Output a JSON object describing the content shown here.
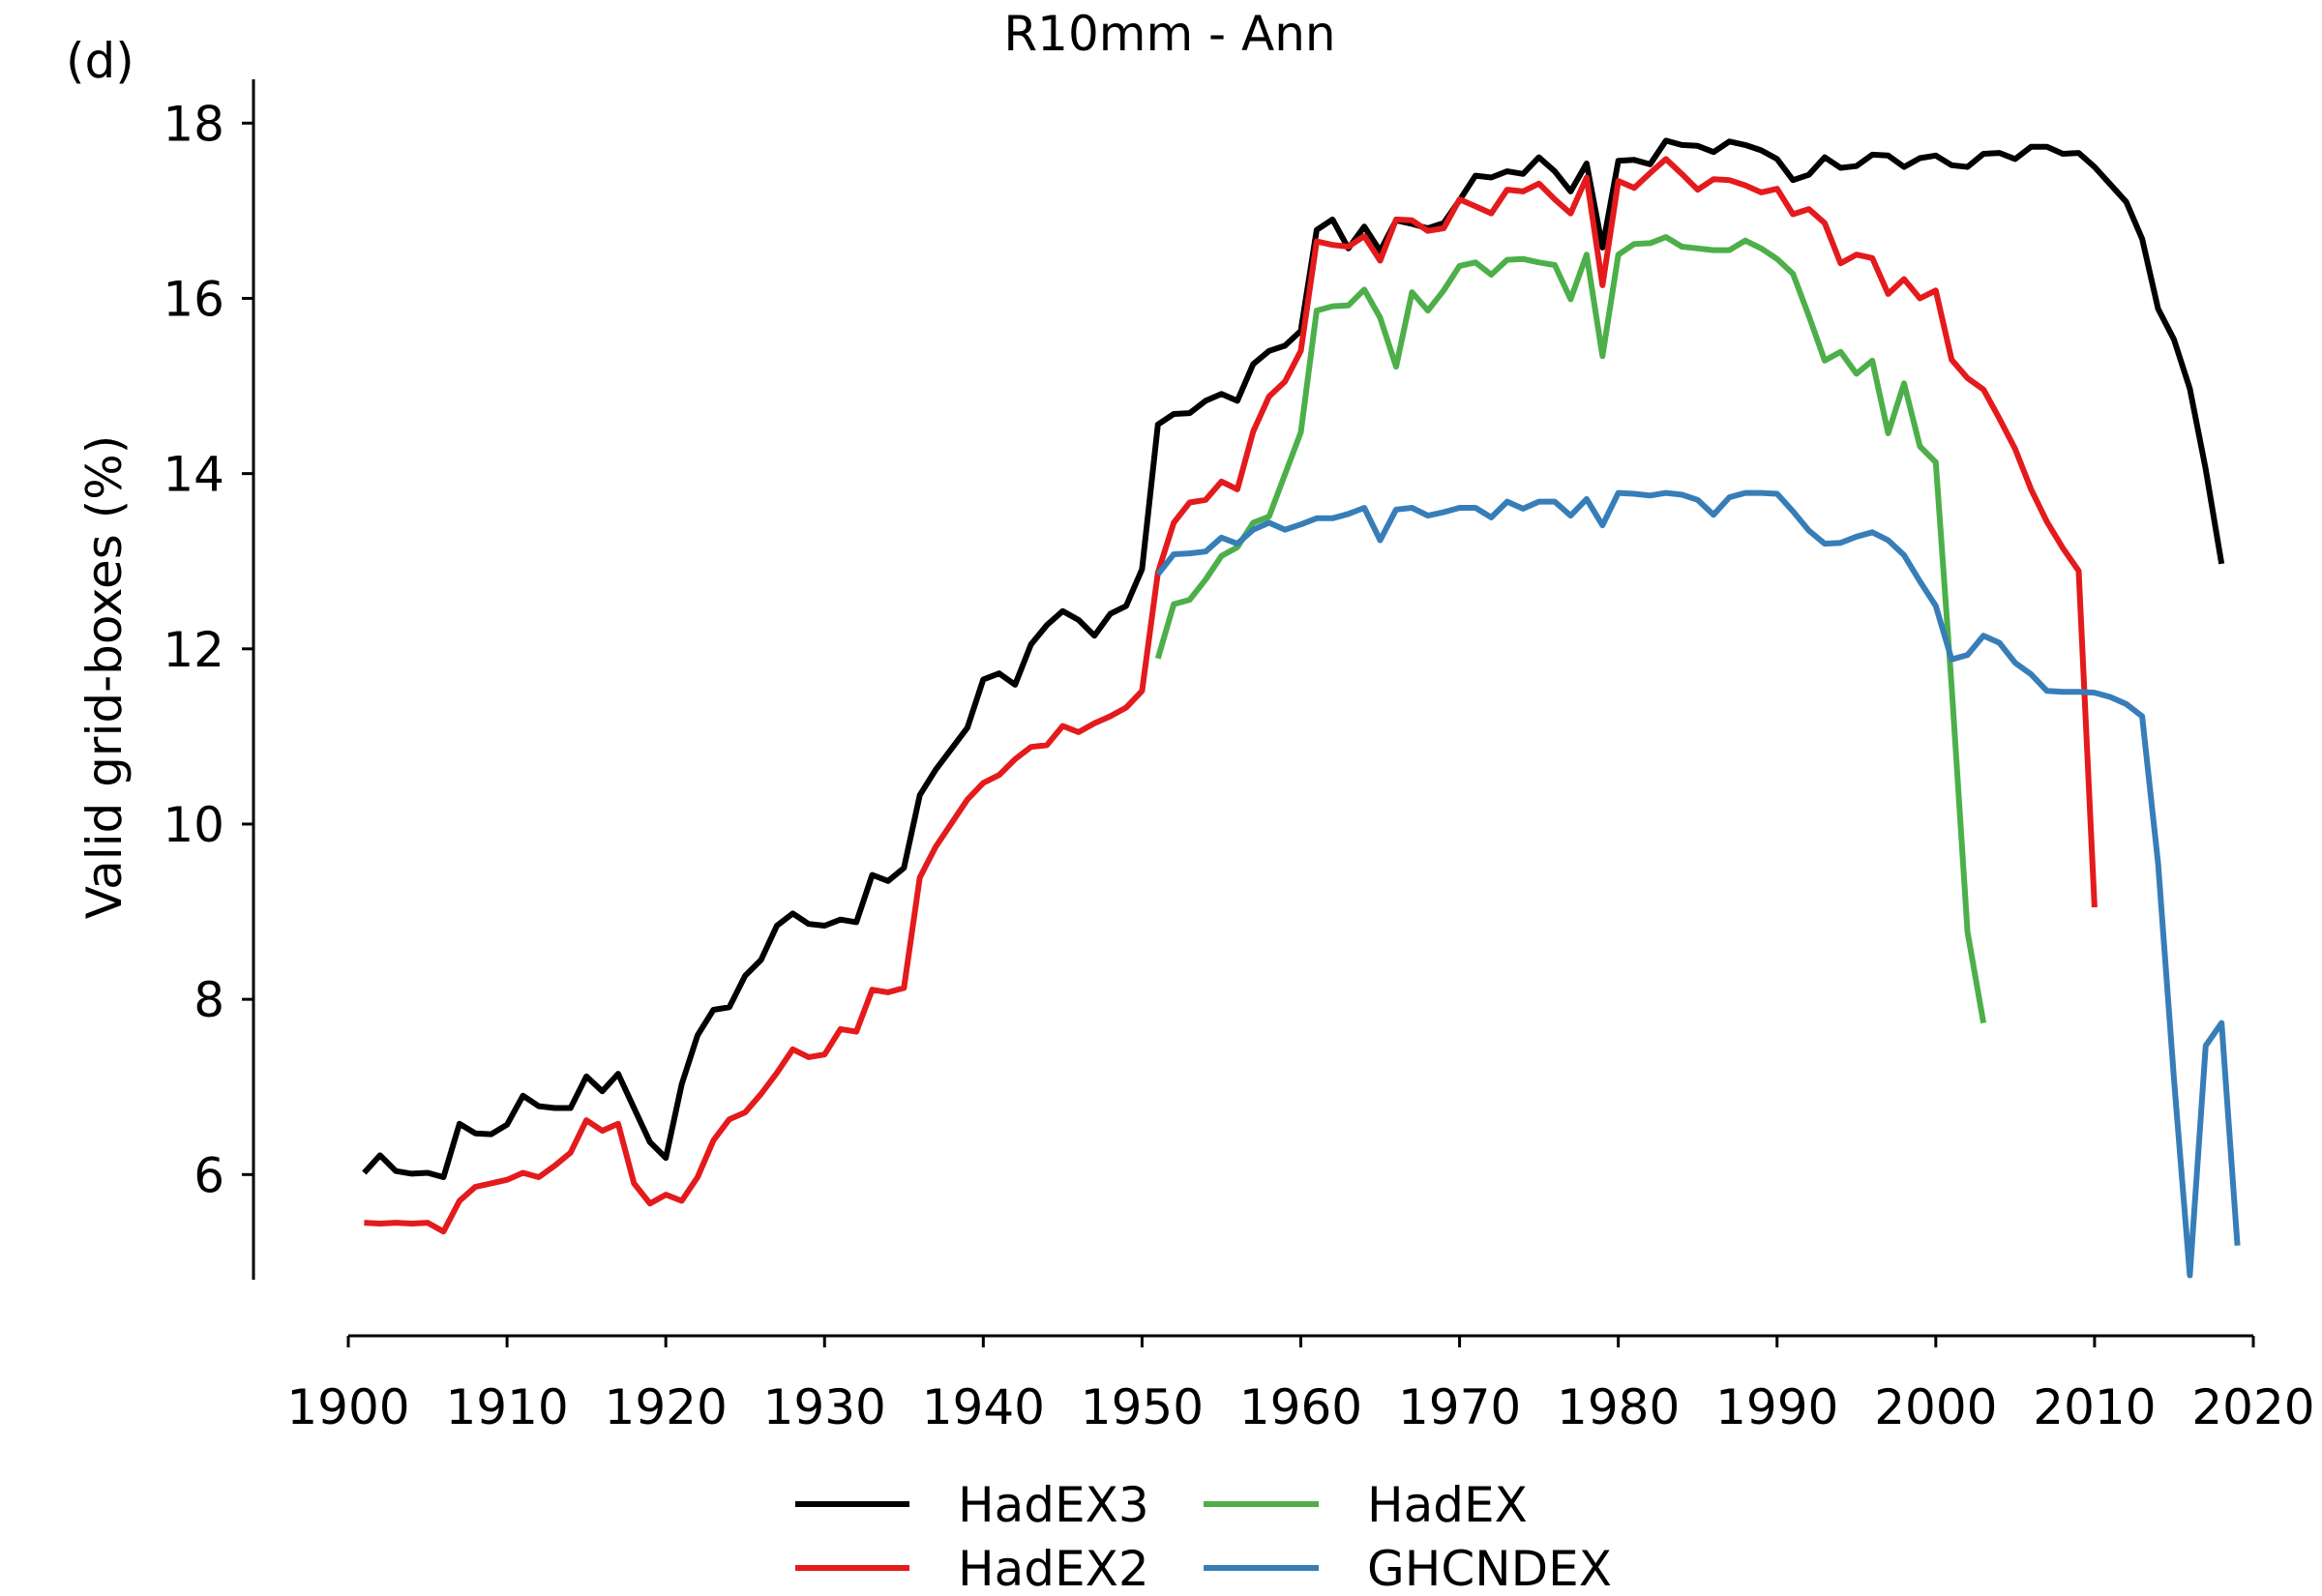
{
  "panel_label": "(d)",
  "chart_data": {
    "type": "line",
    "title": "R10mm - Ann",
    "xlabel": "",
    "ylabel": "Valid grid-boxes (%)",
    "xlim": [
      1900,
      2020
    ],
    "ylim": [
      4.8,
      18.5
    ],
    "x_ticks": [
      1900,
      1910,
      1920,
      1930,
      1940,
      1950,
      1960,
      1970,
      1980,
      1990,
      2000,
      2010,
      2020
    ],
    "y_ticks": [
      6,
      8,
      10,
      12,
      14,
      16,
      18
    ],
    "grid": false,
    "legend_position": "bottom",
    "series": [
      {
        "name": "HadEX3",
        "color": "#000000",
        "x_start": 1901,
        "values": [
          6.02,
          6.22,
          6.04,
          6.01,
          6.02,
          5.97,
          6.58,
          6.47,
          6.46,
          6.57,
          6.9,
          6.78,
          6.76,
          6.76,
          7.12,
          6.95,
          7.15,
          6.76,
          6.37,
          6.19,
          7.03,
          7.59,
          7.88,
          7.91,
          8.27,
          8.45,
          8.84,
          8.98,
          8.86,
          8.84,
          8.91,
          8.88,
          9.42,
          9.35,
          9.5,
          10.33,
          10.62,
          10.86,
          11.1,
          11.65,
          11.72,
          11.59,
          12.05,
          12.27,
          12.43,
          12.33,
          12.15,
          12.4,
          12.49,
          12.91,
          14.56,
          14.68,
          14.69,
          14.83,
          14.91,
          14.83,
          15.25,
          15.4,
          15.46,
          15.63,
          16.78,
          16.9,
          16.57,
          16.82,
          16.54,
          16.89,
          16.85,
          16.8,
          16.86,
          17.12,
          17.4,
          17.38,
          17.45,
          17.42,
          17.61,
          17.45,
          17.22,
          17.54,
          16.58,
          17.57,
          17.58,
          17.53,
          17.8,
          17.75,
          17.74,
          17.67,
          17.79,
          17.75,
          17.69,
          17.59,
          17.35,
          17.41,
          17.61,
          17.49,
          17.51,
          17.64,
          17.63,
          17.5,
          17.6,
          17.63,
          17.52,
          17.5,
          17.65,
          17.66,
          17.59,
          17.73,
          17.73,
          17.65,
          17.66,
          17.5,
          17.3,
          17.1,
          16.68,
          15.88,
          15.53,
          14.97,
          14.05,
          12.97
        ]
      },
      {
        "name": "HadEX2",
        "color": "#e41a1c",
        "x_start": 1901,
        "values": [
          5.45,
          5.44,
          5.45,
          5.44,
          5.45,
          5.35,
          5.7,
          5.86,
          5.9,
          5.94,
          6.02,
          5.97,
          6.1,
          6.25,
          6.62,
          6.5,
          6.58,
          5.9,
          5.67,
          5.77,
          5.7,
          5.97,
          6.39,
          6.63,
          6.71,
          6.92,
          7.16,
          7.43,
          7.34,
          7.37,
          7.66,
          7.63,
          8.11,
          8.08,
          8.13,
          9.39,
          9.74,
          10.01,
          10.28,
          10.47,
          10.56,
          10.74,
          10.88,
          10.9,
          11.12,
          11.05,
          11.15,
          11.23,
          11.33,
          11.52,
          12.87,
          13.44,
          13.67,
          13.7,
          13.91,
          13.82,
          14.48,
          14.88,
          15.05,
          15.4,
          16.65,
          16.61,
          16.59,
          16.71,
          16.43,
          16.9,
          16.89,
          16.77,
          16.8,
          17.13,
          17.05,
          16.97,
          17.24,
          17.22,
          17.31,
          17.13,
          16.97,
          17.38,
          16.15,
          17.34,
          17.26,
          17.43,
          17.59,
          17.42,
          17.24,
          17.36,
          17.35,
          17.29,
          17.21,
          17.25,
          16.96,
          17.02,
          16.86,
          16.4,
          16.5,
          16.46,
          16.05,
          16.22,
          16.0,
          16.09,
          15.3,
          15.09,
          14.96,
          14.63,
          14.28,
          13.82,
          13.45,
          13.15,
          12.89,
          9.05
        ]
      },
      {
        "name": "HadEX",
        "color": "#4daf4a",
        "x_start": 1951,
        "values": [
          11.89,
          12.51,
          12.56,
          12.79,
          13.06,
          13.16,
          13.44,
          13.51,
          13.99,
          14.47,
          15.86,
          15.91,
          15.92,
          16.1,
          15.78,
          15.22,
          16.07,
          15.86,
          16.09,
          16.37,
          16.41,
          16.27,
          16.44,
          16.45,
          16.41,
          16.38,
          15.99,
          16.5,
          15.34,
          16.5,
          16.62,
          16.63,
          16.7,
          16.59,
          16.57,
          16.55,
          16.55,
          16.66,
          16.57,
          16.45,
          16.28,
          15.8,
          15.29,
          15.39,
          15.14,
          15.29,
          14.46,
          15.03,
          14.31,
          14.13,
          11.57,
          8.77,
          7.73
        ]
      },
      {
        "name": "GHCNDEX",
        "color": "#377eb8",
        "x_start": 1951,
        "values": [
          12.85,
          13.08,
          13.09,
          13.11,
          13.27,
          13.2,
          13.36,
          13.44,
          13.36,
          13.42,
          13.49,
          13.49,
          13.54,
          13.61,
          13.24,
          13.59,
          13.61,
          13.52,
          13.56,
          13.61,
          13.61,
          13.5,
          13.68,
          13.6,
          13.68,
          13.68,
          13.52,
          13.71,
          13.41,
          13.78,
          13.77,
          13.75,
          13.78,
          13.76,
          13.7,
          13.53,
          13.73,
          13.78,
          13.78,
          13.77,
          13.57,
          13.35,
          13.2,
          13.21,
          13.28,
          13.33,
          13.24,
          13.07,
          12.77,
          12.49,
          11.88,
          11.93,
          12.15,
          12.07,
          11.84,
          11.71,
          11.52,
          11.51,
          11.51,
          11.5,
          11.45,
          11.37,
          11.23,
          9.55,
          7.09,
          4.85,
          7.47,
          7.73,
          5.19
        ]
      }
    ]
  }
}
